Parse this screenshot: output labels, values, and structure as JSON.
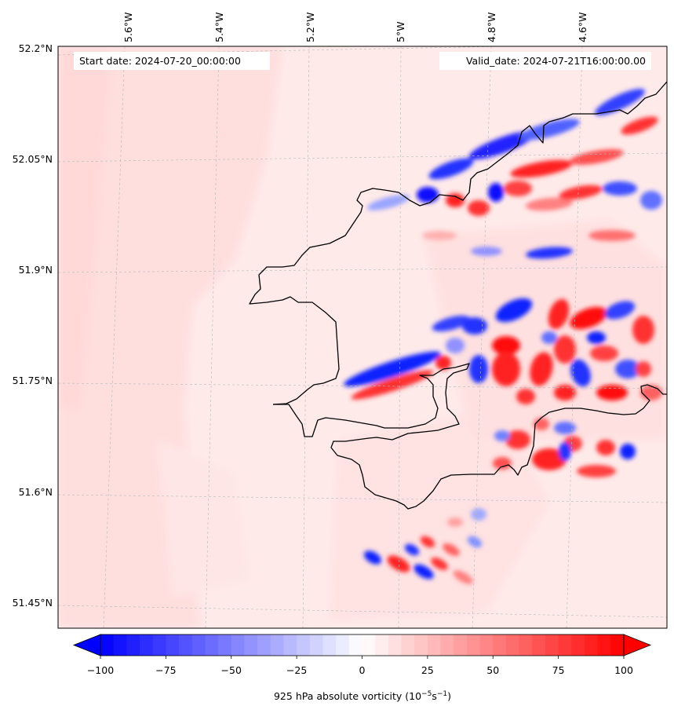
{
  "plot": {
    "start_date": "Start date: 2024-07-20_00:00:00",
    "valid_date": "Valid_date: 2024-07-21T16:00:00.00",
    "lon_labels": [
      "5.6°W",
      "5.4°W",
      "5.2°W",
      "5°W",
      "4.8°W",
      "4.6°W"
    ],
    "lat_labels": [
      "52.2°N",
      "52.05°N",
      "51.9°N",
      "51.75°N",
      "51.6°N",
      "51.45°N"
    ],
    "colors": {
      "negative": "#0000ff",
      "positive": "#ff0000",
      "coast": "#000000"
    }
  },
  "colorbar": {
    "title_prefix": "925 hPa absolute vorticity (10",
    "title_exp1": "−5",
    "title_mid": "s",
    "title_exp2": "−1",
    "title_suffix": ")",
    "ticks": [
      -100,
      -75,
      -50,
      -25,
      0,
      25,
      50,
      75,
      100
    ],
    "tick_labels": [
      "−100",
      "−75",
      "−50",
      "−25",
      "0",
      "25",
      "50",
      "75",
      "100"
    ],
    "min": -100,
    "max": 100,
    "step": 5,
    "extend": "both"
  }
}
